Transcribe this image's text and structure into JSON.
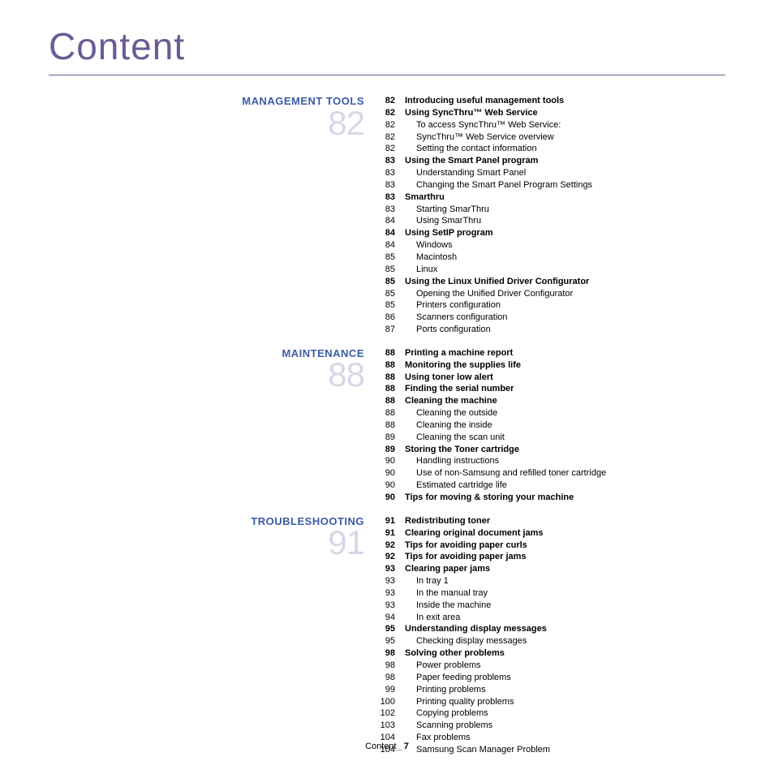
{
  "page_title": "Content",
  "footer": {
    "label": "Content",
    "separator": "_",
    "page_number": "7"
  },
  "sections": [
    {
      "heading": "MANAGEMENT TOOLS",
      "big_number": "82",
      "entries": [
        {
          "page": "82",
          "title": "Introducing useful management tools",
          "bold": true
        },
        {
          "page": "82",
          "title": "Using SyncThru™ Web Service",
          "bold": true
        },
        {
          "page": "82",
          "title": "To access SyncThru™ Web Service:",
          "sub": true
        },
        {
          "page": "82",
          "title": "SyncThru™ Web Service overview",
          "sub": true
        },
        {
          "page": "82",
          "title": "Setting the contact information",
          "sub": true
        },
        {
          "page": "83",
          "title": "Using the Smart Panel program",
          "bold": true
        },
        {
          "page": "83",
          "title": "Understanding Smart Panel",
          "sub": true
        },
        {
          "page": "83",
          "title": "Changing the Smart Panel Program Settings",
          "sub": true
        },
        {
          "page": "83",
          "title": "Smarthru",
          "bold": true
        },
        {
          "page": "83",
          "title": "Starting SmarThru",
          "sub": true
        },
        {
          "page": "84",
          "title": "Using SmarThru",
          "sub": true
        },
        {
          "page": "84",
          "title": "Using SetIP program",
          "bold": true
        },
        {
          "page": "84",
          "title": "Windows",
          "sub": true
        },
        {
          "page": "85",
          "title": "Macintosh",
          "sub": true
        },
        {
          "page": "85",
          "title": "Linux",
          "sub": true
        },
        {
          "page": "85",
          "title": "Using the Linux Unified Driver Configurator",
          "bold": true
        },
        {
          "page": "85",
          "title": "Opening the Unified Driver Configurator",
          "sub": true
        },
        {
          "page": "85",
          "title": "Printers configuration",
          "sub": true
        },
        {
          "page": "86",
          "title": "Scanners configuration",
          "sub": true
        },
        {
          "page": "87",
          "title": "Ports configuration",
          "sub": true
        }
      ]
    },
    {
      "heading": "MAINTENANCE",
      "big_number": "88",
      "entries": [
        {
          "page": "88",
          "title": "Printing a machine report",
          "bold": true
        },
        {
          "page": "88",
          "title": "Monitoring the supplies life",
          "bold": true
        },
        {
          "page": "88",
          "title": "Using toner low alert",
          "bold": true
        },
        {
          "page": "88",
          "title": "Finding the serial number",
          "bold": true
        },
        {
          "page": "88",
          "title": "Cleaning the machine",
          "bold": true
        },
        {
          "page": "88",
          "title": "Cleaning the outside",
          "sub": true
        },
        {
          "page": "88",
          "title": "Cleaning the inside",
          "sub": true
        },
        {
          "page": "89",
          "title": "Cleaning the scan unit",
          "sub": true
        },
        {
          "page": "89",
          "title": "Storing the Toner cartridge",
          "bold": true
        },
        {
          "page": "90",
          "title": "Handling instructions",
          "sub": true
        },
        {
          "page": "90",
          "title": "Use of non-Samsung and refilled toner cartridge",
          "sub": true
        },
        {
          "page": "90",
          "title": "Estimated cartridge life",
          "sub": true
        },
        {
          "page": "90",
          "title": "Tips for moving & storing your machine",
          "bold": true
        }
      ]
    },
    {
      "heading": "TROUBLESHOOTING",
      "big_number": "91",
      "entries": [
        {
          "page": "91",
          "title": "Redistributing toner",
          "bold": true
        },
        {
          "page": "91",
          "title": "Clearing original document jams",
          "bold": true
        },
        {
          "page": "92",
          "title": "Tips for avoiding paper curls",
          "bold": true
        },
        {
          "page": "92",
          "title": "Tips for avoiding paper jams",
          "bold": true
        },
        {
          "page": "93",
          "title": "Clearing paper jams",
          "bold": true
        },
        {
          "page": "93",
          "title": "In tray 1",
          "sub": true
        },
        {
          "page": "93",
          "title": "In the manual tray",
          "sub": true
        },
        {
          "page": "93",
          "title": "Inside the machine",
          "sub": true
        },
        {
          "page": "94",
          "title": "In exit area",
          "sub": true
        },
        {
          "page": "95",
          "title": "Understanding display messages",
          "bold": true
        },
        {
          "page": "95",
          "title": "Checking display messages",
          "sub": true
        },
        {
          "page": "98",
          "title": "Solving other problems",
          "bold": true
        },
        {
          "page": "98",
          "title": "Power problems",
          "sub": true
        },
        {
          "page": "98",
          "title": "Paper feeding problems",
          "sub": true
        },
        {
          "page": "99",
          "title": "Printing problems",
          "sub": true
        },
        {
          "page": "100",
          "title": "Printing quality problems",
          "sub": true
        },
        {
          "page": "102",
          "title": "Copying problems",
          "sub": true
        },
        {
          "page": "103",
          "title": "Scanning problems",
          "sub": true
        },
        {
          "page": "104",
          "title": "Fax problems",
          "sub": true
        },
        {
          "page": "104",
          "title": "Samsung Scan Manager Problem",
          "sub": true
        }
      ]
    }
  ]
}
